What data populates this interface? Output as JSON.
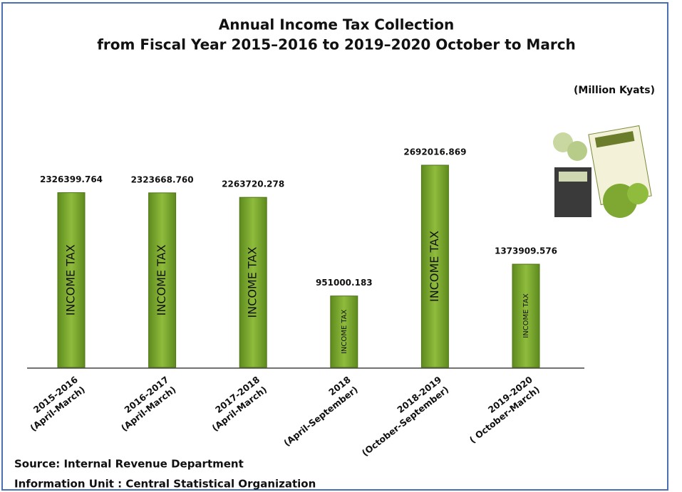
{
  "chart_data": {
    "type": "bar",
    "title": [
      "Annual Income Tax Collection",
      "from Fiscal Year  2015–2016 to 2019–2020 October to March"
    ],
    "unit_label": "(Million Kyats)",
    "bar_label": "INCOME TAX",
    "categories": [
      [
        "2015-2016",
        "(April-March)"
      ],
      [
        "2016-2017",
        "(April-March)"
      ],
      [
        "2017-2018",
        "(April-March)"
      ],
      [
        "2018",
        "(April-September)"
      ],
      [
        "2018-2019",
        "(October-September)"
      ],
      [
        "2019-2020",
        "( October-March)"
      ]
    ],
    "values": [
      2326399.764,
      2323668.76,
      2263720.278,
      951000.183,
      2692016.869,
      1373909.576
    ],
    "value_labels": [
      "2326399.764",
      "2323668.760",
      "2263720.278",
      "951000.183",
      "2692016.869",
      "1373909.576"
    ],
    "color": "#7ea832",
    "source": [
      "Source: Internal Revenue Department",
      "Information Unit :  Central Statistical Organization"
    ]
  }
}
